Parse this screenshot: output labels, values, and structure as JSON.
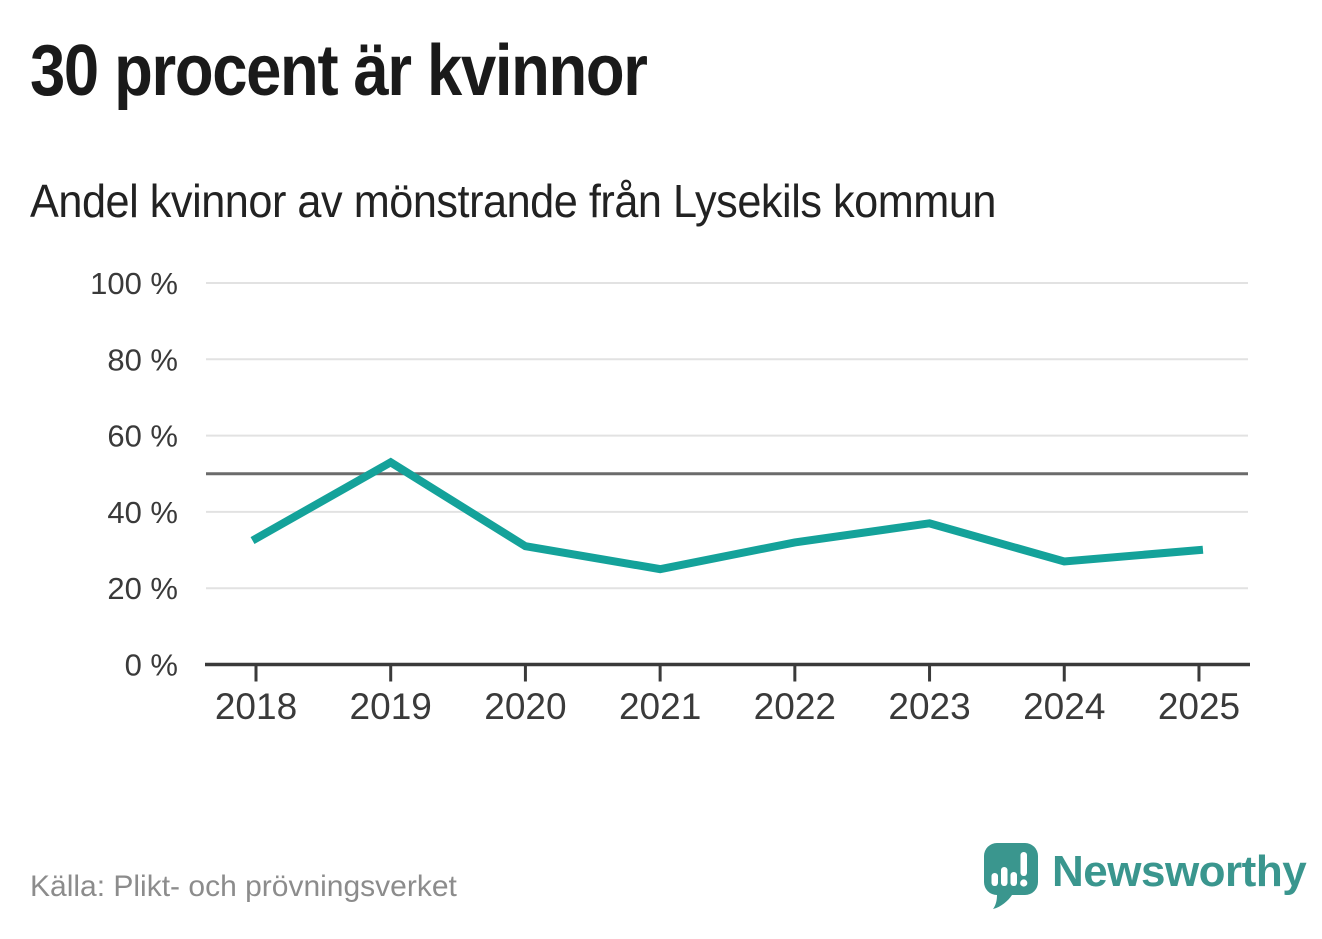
{
  "header": {
    "title": "30 procent är kvinnor",
    "subtitle": "Andel kvinnor av mönstrande från Lysekils kommun"
  },
  "chart_data": {
    "type": "line",
    "title": "30 procent är kvinnor",
    "subtitle": "Andel kvinnor av mönstrande från Lysekils kommun",
    "x": [
      2018,
      2019,
      2020,
      2021,
      2022,
      2023,
      2024,
      2025
    ],
    "xtick_labels": [
      "2018",
      "2019",
      "2020",
      "2021",
      "2022",
      "2023",
      "2024",
      "2025"
    ],
    "series": [
      {
        "name": "Andel kvinnor av mönstrande",
        "values": [
          33,
          53,
          31,
          25,
          32,
          37,
          27,
          30
        ]
      }
    ],
    "unit": "%",
    "ylim": [
      0,
      100
    ],
    "yticks": [
      0,
      20,
      40,
      60,
      80,
      100
    ],
    "ytick_labels": [
      "0 %",
      "20 %",
      "40 %",
      "60 %",
      "80 %",
      "100 %"
    ],
    "reference_line": {
      "value": 50
    },
    "grid": true,
    "legend": "none",
    "line_color": "#14a29a"
  },
  "footer": {
    "source": "Källa: Plikt- och prövningsverket",
    "brand": "Newsworthy",
    "logo_icon": "newsworthy-speech-bubble-bar-chart-icon"
  },
  "colors": {
    "accent_teal": "#14a29a",
    "brand_teal": "#3a968e",
    "text_dark": "#1a1a1a",
    "axis_text": "#3a3a3a",
    "axis": "#3a3a3a",
    "gridline": "#e2e2e2",
    "reference_line": "#6b6b6b",
    "source_text": "#8c8c8c"
  }
}
